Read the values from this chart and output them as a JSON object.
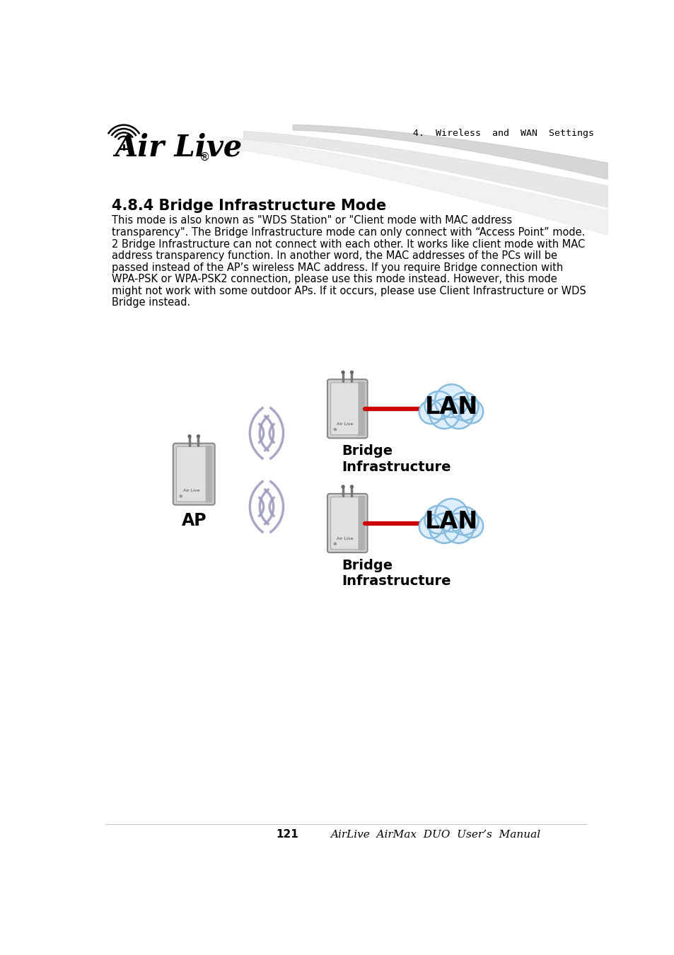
{
  "bg_color": "#ffffff",
  "header_text": "4.  Wireless  and  WAN  Settings",
  "section_title": "4.8.4 Bridge Infrastructure Mode",
  "body_text": "This mode is also known as \"WDS Station\" or \"Client mode with MAC address\ntransparency\". The Bridge Infrastructure mode can only connect with “Access Point” mode.\n2 Bridge Infrastructure can not connect with each other. It works like client mode with MAC\naddress transparency function. In another word, the MAC addresses of the PCs will be\npassed instead of the AP’s wireless MAC address. If you require Bridge connection with\nWPA-PSK or WPA-PSK2 connection, please use this mode instead. However, this mode\nmight not work with some outdoor APs. If it occurs, please use Client Infrastructure or WDS\nBridge instead.",
  "footer_page": "121",
  "footer_manual": "AirLive  AirMax  DUO  User’s  Manual",
  "label_ap": "AP",
  "label_bridge1": "Bridge\nInfrastructure",
  "label_bridge2": "Bridge\nInfrastructure",
  "label_lan": "LAN",
  "wave_color": "#9999BB",
  "device_color": "#CCCCCC",
  "device_edge": "#999999",
  "cloud_color": "#DDEEFF",
  "cloud_edge": "#88BBDD",
  "cable_color": "#CC0000",
  "header_color": "#333333",
  "swoosh1": "#CCCCCC",
  "swoosh2": "#DDDDDD",
  "swoosh3": "#E8E8E8"
}
